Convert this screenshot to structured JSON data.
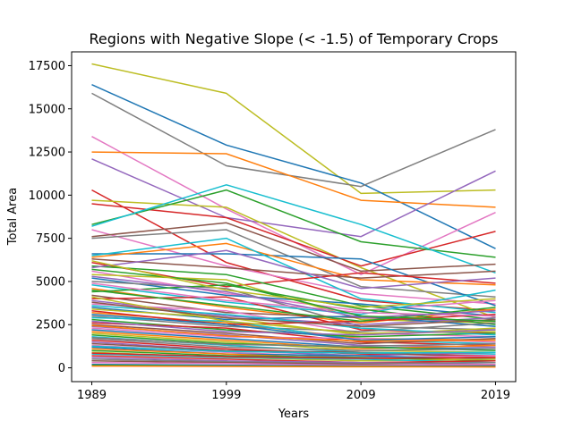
{
  "chart_data": {
    "type": "line",
    "title": "Regions with Negative Slope (< -1.5) of Temporary Crops",
    "xlabel": "Years",
    "ylabel": "Total Area",
    "x": [
      1989,
      1999,
      2009,
      2019
    ],
    "x_tick_labels": [
      "1989",
      "1999",
      "2009",
      "2019"
    ],
    "ylim": [
      -800,
      18300
    ],
    "y_ticks": [
      0,
      2500,
      5000,
      7500,
      10000,
      12500,
      15000,
      17500
    ],
    "y_tick_labels": [
      "0",
      "2500",
      "5000",
      "7500",
      "10000",
      "12500",
      "15000",
      "17500"
    ],
    "grid": false,
    "legend": "none",
    "palette": [
      "#1f77b4",
      "#ff7f0e",
      "#2ca02c",
      "#d62728",
      "#9467bd",
      "#8c564b",
      "#e377c2",
      "#7f7f7f",
      "#bcbd22",
      "#17becf"
    ],
    "series": [
      {
        "values": [
          17600,
          15900,
          10100,
          10300
        ],
        "color": "#bcbd22"
      },
      {
        "values": [
          16400,
          12900,
          10700,
          6900
        ],
        "color": "#1f77b4"
      },
      {
        "values": [
          15900,
          11700,
          10500,
          13800
        ],
        "color": "#7f7f7f"
      },
      {
        "values": [
          13400,
          9200,
          5400,
          9000
        ],
        "color": "#e377c2"
      },
      {
        "values": [
          12500,
          12400,
          9700,
          9300
        ],
        "color": "#ff7f0e"
      },
      {
        "values": [
          12100,
          8700,
          7600,
          11400
        ],
        "color": "#9467bd"
      },
      {
        "values": [
          10300,
          6100,
          3900,
          3300
        ],
        "color": "#d62728"
      },
      {
        "values": [
          9700,
          9300,
          5800,
          2900
        ],
        "color": "#bcbd22"
      },
      {
        "values": [
          9500,
          8700,
          5900,
          7900
        ],
        "color": "#d62728"
      },
      {
        "values": [
          8300,
          10300,
          7300,
          6400
        ],
        "color": "#2ca02c"
      },
      {
        "values": [
          8200,
          10600,
          8300,
          5500
        ],
        "color": "#17becf"
      },
      {
        "values": [
          8000,
          5900,
          4300,
          3700
        ],
        "color": "#e377c2"
      },
      {
        "values": [
          7600,
          8400,
          5600,
          6000
        ],
        "color": "#8c564b"
      },
      {
        "values": [
          7500,
          8000,
          4700,
          4100
        ],
        "color": "#7f7f7f"
      },
      {
        "values": [
          6600,
          6600,
          6300,
          3600
        ],
        "color": "#1f77b4"
      },
      {
        "values": [
          6400,
          7200,
          5100,
          4800
        ],
        "color": "#ff7f0e"
      },
      {
        "values": [
          6500,
          7500,
          4000,
          3200
        ],
        "color": "#17becf"
      },
      {
        "values": [
          6300,
          5800,
          5200,
          5600
        ],
        "color": "#8c564b"
      },
      {
        "values": [
          6100,
          4700,
          5500,
          4900
        ],
        "color": "#d62728"
      },
      {
        "values": [
          5900,
          5400,
          3600,
          2800
        ],
        "color": "#2ca02c"
      },
      {
        "values": [
          5800,
          6800,
          4600,
          5200
        ],
        "color": "#9467bd"
      },
      {
        "values": [
          5600,
          4300,
          3300,
          3900
        ],
        "color": "#e377c2"
      },
      {
        "values": [
          5400,
          5100,
          2800,
          2600
        ],
        "color": "#bcbd22"
      },
      {
        "values": [
          5200,
          4200,
          3700,
          3000
        ],
        "color": "#1f77b4"
      },
      {
        "values": [
          5000,
          4600,
          2400,
          2200
        ],
        "color": "#7f7f7f"
      },
      {
        "values": [
          4800,
          3800,
          3100,
          4500
        ],
        "color": "#17becf"
      },
      {
        "values": [
          4600,
          3500,
          2600,
          3400
        ],
        "color": "#ff7f0e"
      },
      {
        "values": [
          4400,
          4800,
          3400,
          2500
        ],
        "color": "#2ca02c"
      },
      {
        "values": [
          4200,
          3200,
          2900,
          2700
        ],
        "color": "#8c564b"
      },
      {
        "values": [
          4000,
          4100,
          2200,
          2000
        ],
        "color": "#d62728"
      },
      {
        "values": [
          3900,
          3000,
          2500,
          2900
        ],
        "color": "#9467bd"
      },
      {
        "values": [
          3700,
          3300,
          2000,
          1800
        ],
        "color": "#e377c2"
      },
      {
        "values": [
          3500,
          2800,
          3000,
          2400
        ],
        "color": "#1f77b4"
      },
      {
        "values": [
          3400,
          2900,
          1900,
          2300
        ],
        "color": "#bcbd22"
      },
      {
        "values": [
          3200,
          2600,
          1700,
          1600
        ],
        "color": "#ff7f0e"
      },
      {
        "values": [
          3000,
          2400,
          2100,
          2600
        ],
        "color": "#7f7f7f"
      },
      {
        "values": [
          2900,
          2700,
          1600,
          1400
        ],
        "color": "#17becf"
      },
      {
        "values": [
          2800,
          2200,
          1800,
          2000
        ],
        "color": "#2ca02c"
      },
      {
        "values": [
          2600,
          2300,
          1500,
          1300
        ],
        "color": "#d62728"
      },
      {
        "values": [
          2500,
          2000,
          1400,
          1700
        ],
        "color": "#8c564b"
      },
      {
        "values": [
          2400,
          1900,
          1300,
          1200
        ],
        "color": "#9467bd"
      },
      {
        "values": [
          2300,
          1800,
          1700,
          1500
        ],
        "color": "#e377c2"
      },
      {
        "values": [
          2200,
          1700,
          1200,
          1100
        ],
        "color": "#1f77b4"
      },
      {
        "values": [
          2100,
          1600,
          1100,
          1300
        ],
        "color": "#ff7f0e"
      },
      {
        "values": [
          2000,
          1500,
          1000,
          900
        ],
        "color": "#bcbd22"
      },
      {
        "values": [
          1900,
          1400,
          1200,
          1000
        ],
        "color": "#2ca02c"
      },
      {
        "values": [
          1800,
          1300,
          900,
          800
        ],
        "color": "#17becf"
      },
      {
        "values": [
          1700,
          1200,
          1000,
          1100
        ],
        "color": "#7f7f7f"
      },
      {
        "values": [
          1600,
          1100,
          800,
          700
        ],
        "color": "#d62728"
      },
      {
        "values": [
          1500,
          1000,
          700,
          900
        ],
        "color": "#9467bd"
      },
      {
        "values": [
          1400,
          1000,
          900,
          600
        ],
        "color": "#8c564b"
      },
      {
        "values": [
          1300,
          900,
          600,
          700
        ],
        "color": "#e377c2"
      },
      {
        "values": [
          1200,
          800,
          700,
          500
        ],
        "color": "#1f77b4"
      },
      {
        "values": [
          1100,
          800,
          500,
          600
        ],
        "color": "#ff7f0e"
      },
      {
        "values": [
          1000,
          700,
          600,
          400
        ],
        "color": "#2ca02c"
      },
      {
        "values": [
          900,
          600,
          400,
          500
        ],
        "color": "#bcbd22"
      },
      {
        "values": [
          800,
          600,
          500,
          300
        ],
        "color": "#17becf"
      },
      {
        "values": [
          700,
          500,
          300,
          400
        ],
        "color": "#d62728"
      },
      {
        "values": [
          600,
          400,
          300,
          200
        ],
        "color": "#9467bd"
      },
      {
        "values": [
          500,
          350,
          250,
          300
        ],
        "color": "#7f7f7f"
      },
      {
        "values": [
          400,
          300,
          200,
          150
        ],
        "color": "#8c564b"
      },
      {
        "values": [
          300,
          250,
          150,
          200
        ],
        "color": "#e377c2"
      },
      {
        "values": [
          200,
          150,
          100,
          100
        ],
        "color": "#1f77b4"
      },
      {
        "values": [
          150,
          100,
          80,
          60
        ],
        "color": "#2ca02c"
      },
      {
        "values": [
          100,
          80,
          60,
          50
        ],
        "color": "#ff7f0e"
      },
      {
        "values": [
          3600,
          3100,
          2300,
          1900
        ],
        "color": "#17becf"
      },
      {
        "values": [
          3300,
          2500,
          2700,
          3100
        ],
        "color": "#d62728"
      },
      {
        "values": [
          4100,
          2700,
          2000,
          2100
        ],
        "color": "#bcbd22"
      },
      {
        "values": [
          2700,
          2100,
          1900,
          2200
        ],
        "color": "#9467bd"
      },
      {
        "values": [
          4500,
          3600,
          2700,
          3500
        ],
        "color": "#2ca02c"
      },
      {
        "values": [
          3800,
          2900,
          2400,
          2800
        ],
        "color": "#8c564b"
      },
      {
        "values": [
          3100,
          2500,
          1600,
          1800
        ],
        "color": "#1f77b4"
      },
      {
        "values": [
          4900,
          3900,
          3200,
          3000
        ],
        "color": "#e377c2"
      },
      {
        "values": [
          1750,
          1350,
          1250,
          1400
        ],
        "color": "#7f7f7f"
      },
      {
        "values": [
          2450,
          1850,
          1550,
          1600
        ],
        "color": "#ff7f0e"
      },
      {
        "values": [
          1250,
          950,
          850,
          900
        ],
        "color": "#17becf"
      },
      {
        "values": [
          850,
          650,
          550,
          600
        ],
        "color": "#d62728"
      },
      {
        "values": [
          5300,
          4400,
          2900,
          3300
        ],
        "color": "#9467bd"
      },
      {
        "values": [
          5700,
          4900,
          3000,
          2700
        ],
        "color": "#2ca02c"
      },
      {
        "values": [
          6200,
          4500,
          3500,
          4000
        ],
        "color": "#bcbd22"
      }
    ]
  }
}
